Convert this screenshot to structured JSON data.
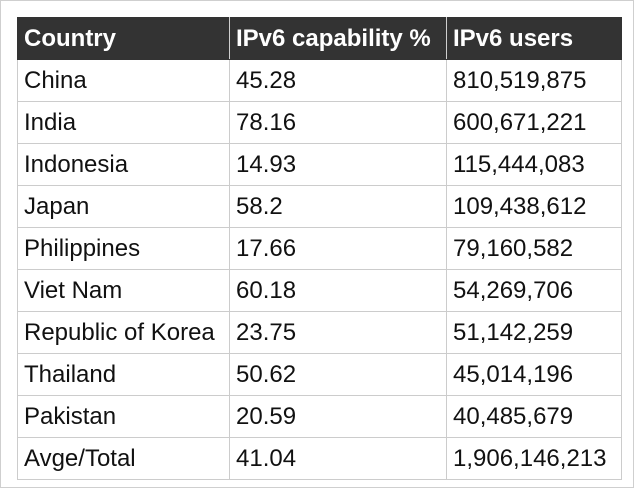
{
  "table": {
    "headers": [
      "Country",
      "IPv6 capability %",
      "IPv6 users"
    ],
    "rows": [
      [
        "China",
        "45.28",
        "810,519,875"
      ],
      [
        "India",
        "78.16",
        "600,671,221"
      ],
      [
        "Indonesia",
        "14.93",
        "115,444,083"
      ],
      [
        "Japan",
        "58.2",
        "109,438,612"
      ],
      [
        "Philippines",
        "17.66",
        "79,160,582"
      ],
      [
        "Viet Nam",
        "60.18",
        "54,269,706"
      ],
      [
        "Republic of Korea",
        "23.75",
        "51,142,259"
      ],
      [
        "Thailand",
        "50.62",
        "45,014,196"
      ],
      [
        "Pakistan",
        "20.59",
        "40,485,679"
      ],
      [
        "Avge/Total",
        "41.04",
        "1,906,146,213"
      ]
    ]
  },
  "colors": {
    "header_background": "#333333",
    "header_text": "#ffffff",
    "cell_border": "#cccccc"
  }
}
